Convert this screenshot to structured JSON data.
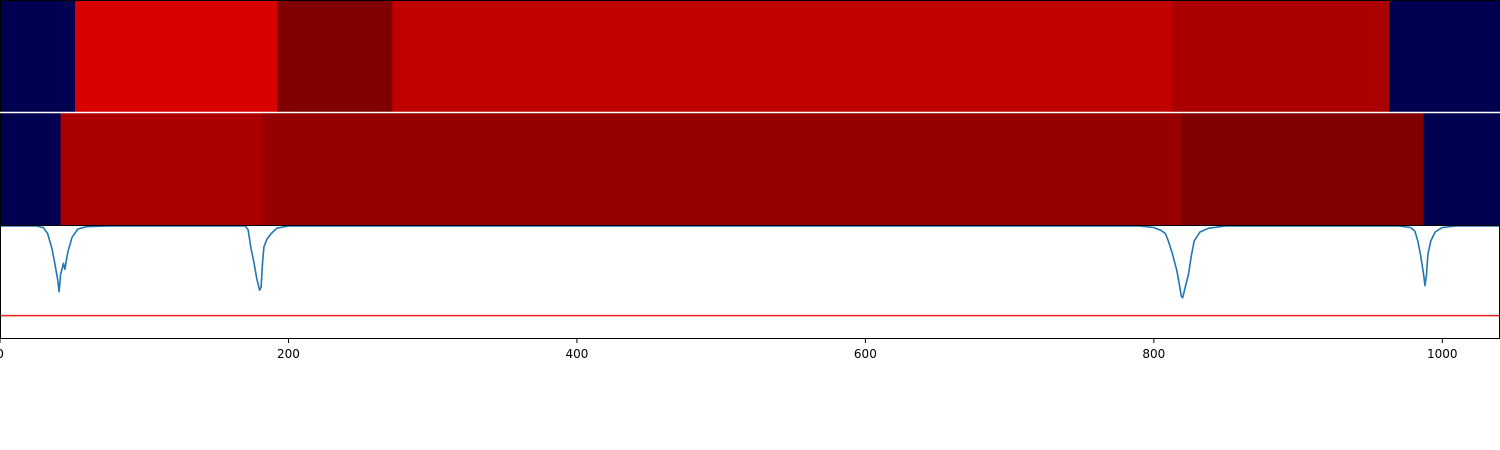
{
  "chart_data": {
    "type": "heatmap",
    "xlim": [
      0,
      1040
    ],
    "x_ticks": [
      "0",
      "200",
      "400",
      "600",
      "800",
      "1000"
    ],
    "x_tick_values": [
      0,
      200,
      400,
      600,
      800,
      1000
    ],
    "heatmap_rows": [
      {
        "segments": [
          {
            "start": 0,
            "end": 52,
            "color": "#000050"
          },
          {
            "start": 52,
            "end": 192,
            "color": "#d90000"
          },
          {
            "start": 192,
            "end": 272,
            "color": "#7f0000"
          },
          {
            "start": 272,
            "end": 813,
            "color": "#c10000"
          },
          {
            "start": 813,
            "end": 963,
            "color": "#aa0000"
          },
          {
            "start": 963,
            "end": 1040,
            "color": "#000050"
          }
        ]
      },
      {
        "segments": [
          {
            "start": 0,
            "end": 42,
            "color": "#000050"
          },
          {
            "start": 42,
            "end": 182,
            "color": "#aa0000"
          },
          {
            "start": 182,
            "end": 819,
            "color": "#960000"
          },
          {
            "start": 819,
            "end": 987,
            "color": "#7f0000"
          },
          {
            "start": 987,
            "end": 1040,
            "color": "#000050"
          }
        ]
      }
    ],
    "signal": {
      "color": "#1f77b4",
      "baseline": 1.0,
      "ylim": [
        -0.5,
        1.0
      ],
      "threshold": -0.2,
      "threshold_color": "#e8211a",
      "points": [
        [
          0,
          1.0
        ],
        [
          25,
          1.0
        ],
        [
          30,
          0.98
        ],
        [
          33,
          0.9
        ],
        [
          36,
          0.7
        ],
        [
          38,
          0.5
        ],
        [
          40,
          0.28
        ],
        [
          41,
          0.12
        ],
        [
          42,
          0.35
        ],
        [
          44,
          0.5
        ],
        [
          45,
          0.42
        ],
        [
          47,
          0.65
        ],
        [
          50,
          0.85
        ],
        [
          54,
          0.96
        ],
        [
          60,
          0.99
        ],
        [
          75,
          1.0
        ],
        [
          170,
          1.0
        ],
        [
          172,
          0.95
        ],
        [
          174,
          0.7
        ],
        [
          176,
          0.52
        ],
        [
          178,
          0.3
        ],
        [
          180,
          0.14
        ],
        [
          181,
          0.18
        ],
        [
          182,
          0.5
        ],
        [
          183,
          0.72
        ],
        [
          185,
          0.82
        ],
        [
          188,
          0.9
        ],
        [
          192,
          0.97
        ],
        [
          200,
          1.0
        ],
        [
          209,
          1.0
        ],
        [
          790,
          1.0
        ],
        [
          800,
          0.98
        ],
        [
          805,
          0.94
        ],
        [
          808,
          0.9
        ],
        [
          810,
          0.8
        ],
        [
          813,
          0.62
        ],
        [
          816,
          0.4
        ],
        [
          818,
          0.18
        ],
        [
          819,
          0.06
        ],
        [
          820,
          0.04
        ],
        [
          822,
          0.2
        ],
        [
          824,
          0.35
        ],
        [
          826,
          0.6
        ],
        [
          828,
          0.8
        ],
        [
          832,
          0.92
        ],
        [
          838,
          0.97
        ],
        [
          850,
          1.0
        ],
        [
          970,
          1.0
        ],
        [
          978,
          0.98
        ],
        [
          981,
          0.93
        ],
        [
          983,
          0.8
        ],
        [
          985,
          0.6
        ],
        [
          987,
          0.35
        ],
        [
          988,
          0.2
        ],
        [
          989,
          0.34
        ],
        [
          990,
          0.62
        ],
        [
          992,
          0.8
        ],
        [
          995,
          0.92
        ],
        [
          1000,
          0.98
        ],
        [
          1010,
          1.0
        ],
        [
          1040,
          1.0
        ]
      ]
    }
  }
}
